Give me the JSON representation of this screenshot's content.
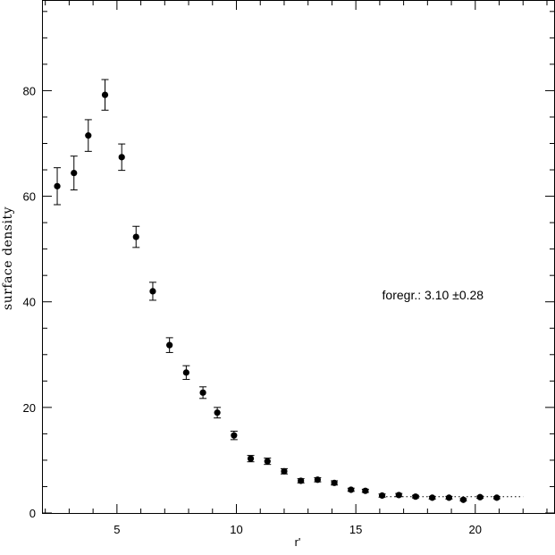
{
  "chart_data": {
    "type": "scatter",
    "title": "",
    "xlabel": "r'",
    "ylabel": "surface density",
    "xlim": [
      1.9,
      23.3
    ],
    "ylim": [
      0,
      97
    ],
    "xticks": [
      5,
      10,
      15,
      20
    ],
    "yticks": [
      0,
      20,
      40,
      60,
      80
    ],
    "grid": false,
    "series": [
      {
        "type": "scatter-errorbar",
        "x": [
          2.5,
          3.2,
          3.8,
          4.5,
          5.2,
          5.8,
          6.5,
          7.2,
          7.9,
          8.6,
          9.2,
          9.9,
          10.6,
          11.3,
          12.0,
          12.7,
          13.4,
          14.1,
          14.8,
          15.4,
          16.1,
          16.8,
          17.5,
          18.2,
          18.9,
          19.5,
          20.2,
          20.9
        ],
        "y": [
          61.9,
          64.4,
          71.5,
          79.2,
          67.4,
          52.3,
          42.0,
          31.8,
          26.6,
          22.8,
          19.0,
          14.7,
          10.3,
          9.8,
          7.9,
          6.1,
          6.3,
          5.7,
          4.4,
          4.2,
          3.3,
          3.4,
          3.1,
          2.9,
          2.9,
          2.5,
          3.0,
          2.9
        ],
        "err": [
          3.5,
          3.2,
          3.0,
          2.9,
          2.5,
          2.0,
          1.7,
          1.4,
          1.3,
          1.1,
          1.0,
          0.8,
          0.6,
          0.6,
          0.5,
          0.4,
          0.4,
          0.4,
          0.3,
          0.3,
          0.3,
          0.3,
          0.25,
          0.25,
          0.25,
          0.2,
          0.2,
          0.2
        ]
      },
      {
        "type": "dotted-line",
        "x": [
          16.1,
          22.0
        ],
        "y": [
          3.1,
          3.1
        ]
      }
    ],
    "annotations": [
      {
        "text": "foregr.: 3.10 ±0.28",
        "x": 16.1,
        "y": 40.5
      }
    ]
  }
}
